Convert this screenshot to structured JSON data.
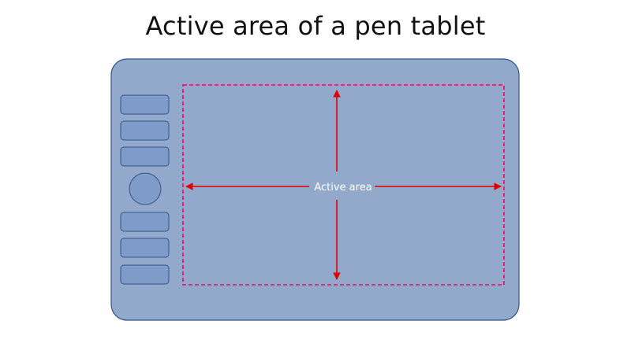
{
  "title": "Active area of a pen tablet",
  "active_area": {
    "label": "Active area"
  },
  "colors": {
    "tablet_fill": "#93a9cb",
    "tablet_stroke": "#2f528f",
    "button_fill": "#7f9cc8",
    "active_border": "#ff0066",
    "arrow": "#e00000",
    "label_text": "#ffffff"
  },
  "buttons": {
    "upper_count": 3,
    "dial_count": 1,
    "lower_count": 3
  }
}
